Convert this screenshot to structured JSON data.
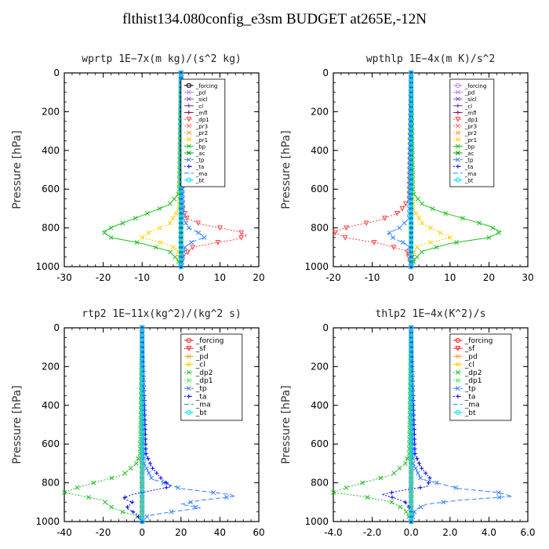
{
  "figure": {
    "title": "flthist134.080config_e3sm  BUDGET at265E,-12N"
  },
  "chart_data": [
    {
      "type": "line",
      "title": "wprtp  1E−7x(m kg)/(s^2 kg)",
      "ylabel": "Pressure [hPa]",
      "xlabel": "",
      "xlim": [
        -30,
        20
      ],
      "ylim": [
        1000,
        0
      ],
      "y_reversed": true,
      "xticks": [
        -30,
        -20,
        -10,
        0,
        10,
        20
      ],
      "xtick_labels": [
        "-30",
        "-20",
        "-10",
        "0",
        "10",
        "20"
      ],
      "yticks": [
        0,
        200,
        400,
        600,
        800,
        1000
      ],
      "ytick_labels": [
        "0",
        "200",
        "400",
        "600",
        "800",
        "1000"
      ],
      "legend": "top-right",
      "series": [
        {
          "name": "_forcing",
          "color": "#000000",
          "marker": "o",
          "dash": "",
          "p": [
            0,
            1000
          ],
          "x": [
            0,
            0
          ]
        },
        {
          "name": "_pd",
          "color": "#c080ff",
          "marker": "x",
          "dash": "",
          "p": [
            0,
            1000
          ],
          "x": [
            0,
            0
          ]
        },
        {
          "name": "_sicl",
          "color": "#8060c0",
          "marker": "x",
          "dash": "",
          "p": [
            0,
            1000
          ],
          "x": [
            0,
            0
          ]
        },
        {
          "name": "_cl",
          "color": "#7030a0",
          "marker": "+",
          "dash": "",
          "p": [
            0,
            1000
          ],
          "x": [
            0,
            0
          ]
        },
        {
          "name": "_mfl",
          "color": "#900050",
          "marker": "+",
          "dash": "",
          "p": [
            0,
            1000
          ],
          "x": [
            0,
            0
          ]
        },
        {
          "name": "_dp1",
          "color": "#ff4040",
          "marker": "v",
          "dash": "2,2",
          "p": [
            0,
            600,
            700,
            750,
            780,
            800,
            820,
            840,
            860,
            880,
            900,
            950,
            1000
          ],
          "x": [
            0,
            0,
            0.5,
            1.5,
            5,
            10,
            15,
            17,
            14,
            8,
            3,
            0.5,
            0
          ]
        },
        {
          "name": "_pr3",
          "color": "#ff7070",
          "marker": "x",
          "dash": "2,2",
          "p": [
            0,
            1000
          ],
          "x": [
            0,
            0
          ]
        },
        {
          "name": "_pr2",
          "color": "#ffa040",
          "marker": "x",
          "dash": "2,2",
          "p": [
            0,
            1000
          ],
          "x": [
            0,
            0
          ]
        },
        {
          "name": "_pr1",
          "color": "#ffd000",
          "marker": "x",
          "dash": "2,2",
          "p": [
            0,
            700,
            780,
            820,
            850,
            870,
            890,
            910,
            940,
            970,
            1000
          ],
          "x": [
            0,
            -0.5,
            -3,
            -8,
            -10,
            -6,
            -3,
            -1,
            -0.5,
            -0.3,
            0
          ]
        },
        {
          "name": "_bp",
          "color": "#20c020",
          "marker": "x",
          "dash": "",
          "p": [
            0,
            620,
            680,
            720,
            760,
            790,
            820,
            850,
            880,
            920,
            960,
            1000
          ],
          "x": [
            0,
            -0.5,
            -3,
            -8,
            -13,
            -17,
            -20,
            -18,
            -10,
            -3,
            -1,
            0
          ]
        },
        {
          "name": "_ac",
          "color": "#00a000",
          "marker": "x",
          "dash": "",
          "p": [
            0,
            1000
          ],
          "x": [
            0,
            0
          ]
        },
        {
          "name": "_tp",
          "color": "#3080ff",
          "marker": "x",
          "dash": "6,3",
          "p": [
            0,
            750,
            800,
            830,
            850,
            870,
            900,
            950,
            1000
          ],
          "x": [
            0,
            0.5,
            2,
            5,
            6,
            3,
            1,
            0.5,
            0
          ]
        },
        {
          "name": "_ta",
          "color": "#0000ff",
          "marker": "+",
          "dash": "2,2",
          "p": [
            0,
            1000
          ],
          "x": [
            0,
            0
          ]
        },
        {
          "name": "_ma",
          "color": "#00a0c0",
          "marker": "",
          "dash": "6,3",
          "p": [
            0,
            1000
          ],
          "x": [
            0,
            0
          ]
        },
        {
          "name": "_bt",
          "color": "#00e0ff",
          "marker": "o",
          "dash": "",
          "p": [
            0,
            1000
          ],
          "x": [
            0,
            0
          ]
        }
      ]
    },
    {
      "type": "line",
      "title": "wpthlp  1E−4x(m K)/s^2",
      "ylabel": "Pressure [hPa]",
      "xlabel": "",
      "xlim": [
        -20,
        30
      ],
      "ylim": [
        1000,
        0
      ],
      "y_reversed": true,
      "xticks": [
        -20,
        -10,
        0,
        10,
        20,
        30
      ],
      "xtick_labels": [
        "-20",
        "-10",
        "0",
        "10",
        "20",
        "30"
      ],
      "yticks": [
        0,
        200,
        400,
        600,
        800,
        1000
      ],
      "ytick_labels": [
        "0",
        "200",
        "400",
        "600",
        "800",
        "1000"
      ],
      "legend": "top-right",
      "series": [
        {
          "name": "_forcing",
          "color": "#c080ff",
          "marker": "o",
          "dash": "",
          "p": [
            0,
            1000
          ],
          "x": [
            0,
            0
          ]
        },
        {
          "name": "_pd",
          "color": "#c080ff",
          "marker": "x",
          "dash": "",
          "p": [
            0,
            1000
          ],
          "x": [
            0,
            0
          ]
        },
        {
          "name": "_sicl",
          "color": "#8060c0",
          "marker": "x",
          "dash": "",
          "p": [
            0,
            1000
          ],
          "x": [
            0,
            0
          ]
        },
        {
          "name": "_cl",
          "color": "#7030a0",
          "marker": "+",
          "dash": "",
          "p": [
            0,
            1000
          ],
          "x": [
            0,
            0
          ]
        },
        {
          "name": "_mfl",
          "color": "#900050",
          "marker": "+",
          "dash": "",
          "p": [
            0,
            1000
          ],
          "x": [
            0,
            0
          ]
        },
        {
          "name": "_dp1",
          "color": "#ff4040",
          "marker": "v",
          "dash": "2,2",
          "p": [
            0,
            650,
            720,
            760,
            790,
            820,
            850,
            880,
            920,
            1000
          ],
          "x": [
            0,
            -0.5,
            -3,
            -8,
            -15,
            -20,
            -17,
            -8,
            -1,
            0
          ]
        },
        {
          "name": "_pr3",
          "color": "#ff7070",
          "marker": "x",
          "dash": "2,2",
          "p": [
            0,
            1000
          ],
          "x": [
            0,
            0
          ]
        },
        {
          "name": "_pr2",
          "color": "#ffa040",
          "marker": "x",
          "dash": "2,2",
          "p": [
            0,
            1000
          ],
          "x": [
            0,
            0
          ]
        },
        {
          "name": "_pr1",
          "color": "#ffd000",
          "marker": "x",
          "dash": "2,2",
          "p": [
            0,
            700,
            780,
            820,
            850,
            870,
            890,
            910,
            940,
            1000
          ],
          "x": [
            0,
            0.5,
            3,
            7,
            10,
            6,
            2,
            1,
            0.5,
            0
          ]
        },
        {
          "name": "_bp",
          "color": "#20c020",
          "marker": "x",
          "dash": "",
          "p": [
            0,
            620,
            680,
            720,
            760,
            790,
            820,
            850,
            880,
            920,
            960,
            1000
          ],
          "x": [
            0,
            0.5,
            3,
            8,
            15,
            20,
            23,
            20,
            10,
            3,
            1,
            0
          ]
        },
        {
          "name": "_ac",
          "color": "#00a000",
          "marker": "x",
          "dash": "",
          "p": [
            0,
            1000
          ],
          "x": [
            0,
            0
          ]
        },
        {
          "name": "_tp",
          "color": "#3080ff",
          "marker": "x",
          "dash": "6,3",
          "p": [
            0,
            750,
            800,
            830,
            860,
            880,
            900,
            950,
            1000
          ],
          "x": [
            0,
            -0.5,
            -3,
            -6,
            -4,
            -1.5,
            -0.5,
            0.3,
            0
          ]
        },
        {
          "name": "_ta",
          "color": "#0000ff",
          "marker": "+",
          "dash": "2,2",
          "p": [
            0,
            1000
          ],
          "x": [
            0,
            0
          ]
        },
        {
          "name": "_ma",
          "color": "#00a0c0",
          "marker": "",
          "dash": "6,3",
          "p": [
            0,
            1000
          ],
          "x": [
            0,
            0
          ]
        },
        {
          "name": "_bt",
          "color": "#00e0ff",
          "marker": "o",
          "dash": "",
          "p": [
            0,
            1000
          ],
          "x": [
            0,
            0
          ]
        }
      ]
    },
    {
      "type": "line",
      "title": "rtp2  1E−11x(kg^2)/(kg^2 s)",
      "ylabel": "Pressure [hPa]",
      "xlabel": "",
      "xlim": [
        -40,
        60
      ],
      "ylim": [
        1000,
        0
      ],
      "y_reversed": true,
      "xticks": [
        -40,
        -20,
        0,
        20,
        40,
        60
      ],
      "xtick_labels": [
        "-40",
        "-20",
        "0",
        "20",
        "40",
        "60"
      ],
      "yticks": [
        0,
        200,
        400,
        600,
        800,
        1000
      ],
      "ytick_labels": [
        "0",
        "200",
        "400",
        "600",
        "800",
        "1000"
      ],
      "legend": "top-right",
      "series": [
        {
          "name": "_forcing",
          "color": "#ff2020",
          "marker": "o",
          "dash": "",
          "p": [
            0,
            1000
          ],
          "x": [
            0,
            0
          ]
        },
        {
          "name": "_sf",
          "color": "#ff2020",
          "marker": "v",
          "dash": "",
          "p": [
            0,
            1000
          ],
          "x": [
            0,
            0
          ]
        },
        {
          "name": "_pd",
          "color": "#ffa040",
          "marker": "x",
          "dash": "",
          "p": [
            0,
            1000
          ],
          "x": [
            0,
            0
          ]
        },
        {
          "name": "_cl",
          "color": "#ffd000",
          "marker": "x",
          "dash": "",
          "p": [
            0,
            1000
          ],
          "x": [
            0,
            0
          ]
        },
        {
          "name": "_dp2",
          "color": "#20c020",
          "marker": "x",
          "dash": "2,2",
          "p": [
            0,
            650,
            700,
            760,
            800,
            830,
            850,
            870,
            890,
            910,
            930,
            950,
            970,
            1000
          ],
          "x": [
            0,
            -1,
            -3,
            -10,
            -25,
            -35,
            -40,
            -30,
            -20,
            -18,
            -15,
            -10,
            -3,
            0
          ]
        },
        {
          "name": "_dp1",
          "color": "#60e060",
          "marker": "x",
          "dash": "2,2",
          "p": [
            0,
            1000
          ],
          "x": [
            0,
            0
          ]
        },
        {
          "name": "_tp",
          "color": "#3080ff",
          "marker": "x",
          "dash": "6,3",
          "p": [
            0,
            700,
            780,
            830,
            860,
            870,
            890,
            910,
            930,
            950,
            970,
            1000
          ],
          "x": [
            0,
            1,
            5,
            20,
            45,
            48,
            30,
            20,
            30,
            15,
            3,
            0
          ]
        },
        {
          "name": "_ta",
          "color": "#0000ff",
          "marker": "+",
          "dash": "2,2",
          "p": [
            0,
            650,
            720,
            780,
            820,
            840,
            860,
            880,
            900,
            930,
            960,
            1000
          ],
          "x": [
            0,
            2,
            5,
            10,
            15,
            5,
            -5,
            -10,
            -5,
            -8,
            -3,
            0
          ]
        },
        {
          "name": "_ma",
          "color": "#00a0c0",
          "marker": "",
          "dash": "6,3",
          "p": [
            0,
            1000
          ],
          "x": [
            0,
            0
          ]
        },
        {
          "name": "_bt",
          "color": "#00e0ff",
          "marker": "o",
          "dash": "",
          "p": [
            0,
            1000
          ],
          "x": [
            0,
            0
          ]
        }
      ]
    },
    {
      "type": "line",
      "title": "thlp2  1E−4x(K^2)/s",
      "ylabel": "Pressure [hPa]",
      "xlabel": "",
      "xlim": [
        -4,
        6
      ],
      "ylim": [
        1000,
        0
      ],
      "y_reversed": true,
      "xticks": [
        -4,
        -2,
        0,
        2,
        4,
        6
      ],
      "xtick_labels": [
        "-4.0",
        "-2.0",
        "0.0",
        "2.0",
        "4.0",
        "6.0"
      ],
      "yticks": [
        0,
        200,
        400,
        600,
        800,
        1000
      ],
      "ytick_labels": [
        "0",
        "200",
        "400",
        "600",
        "800",
        "1000"
      ],
      "legend": "top-right",
      "series": [
        {
          "name": "_forcing",
          "color": "#ff2020",
          "marker": "o",
          "dash": "",
          "p": [
            0,
            1000
          ],
          "x": [
            0,
            0
          ]
        },
        {
          "name": "_sf",
          "color": "#ff2020",
          "marker": "v",
          "dash": "",
          "p": [
            0,
            1000
          ],
          "x": [
            0,
            0
          ]
        },
        {
          "name": "_pd",
          "color": "#ffa040",
          "marker": "x",
          "dash": "",
          "p": [
            0,
            1000
          ],
          "x": [
            0,
            0
          ]
        },
        {
          "name": "_cl",
          "color": "#ffd000",
          "marker": "x",
          "dash": "",
          "p": [
            0,
            1000
          ],
          "x": [
            0,
            0
          ]
        },
        {
          "name": "_dp2",
          "color": "#20c020",
          "marker": "x",
          "dash": "2,2",
          "p": [
            0,
            650,
            700,
            760,
            800,
            830,
            850,
            870,
            900,
            940,
            1000
          ],
          "x": [
            0,
            -0.1,
            -0.3,
            -1,
            -2.5,
            -3.5,
            -4,
            -2.5,
            -1,
            -0.3,
            0
          ]
        },
        {
          "name": "_dp1",
          "color": "#60e060",
          "marker": "x",
          "dash": "2,2",
          "p": [
            0,
            1000
          ],
          "x": [
            0,
            0
          ]
        },
        {
          "name": "_tp",
          "color": "#3080ff",
          "marker": "x",
          "dash": "6,3",
          "p": [
            0,
            700,
            780,
            830,
            850,
            870,
            890,
            910,
            940,
            1000
          ],
          "x": [
            0,
            0.1,
            0.5,
            2.5,
            4.5,
            5.2,
            2.5,
            0.8,
            0.2,
            0
          ]
        },
        {
          "name": "_ta",
          "color": "#0000ff",
          "marker": "+",
          "dash": "2,2",
          "p": [
            0,
            650,
            720,
            780,
            820,
            840,
            860,
            880,
            900,
            940,
            1000
          ],
          "x": [
            0,
            0.2,
            0.5,
            1,
            0.8,
            -0.5,
            -1.5,
            -0.8,
            -0.3,
            0,
            0
          ]
        },
        {
          "name": "_ma",
          "color": "#00a0c0",
          "marker": "",
          "dash": "6,3",
          "p": [
            0,
            1000
          ],
          "x": [
            0,
            0
          ]
        },
        {
          "name": "_bt",
          "color": "#00e0ff",
          "marker": "o",
          "dash": "",
          "p": [
            0,
            1000
          ],
          "x": [
            0,
            0
          ]
        }
      ]
    }
  ]
}
